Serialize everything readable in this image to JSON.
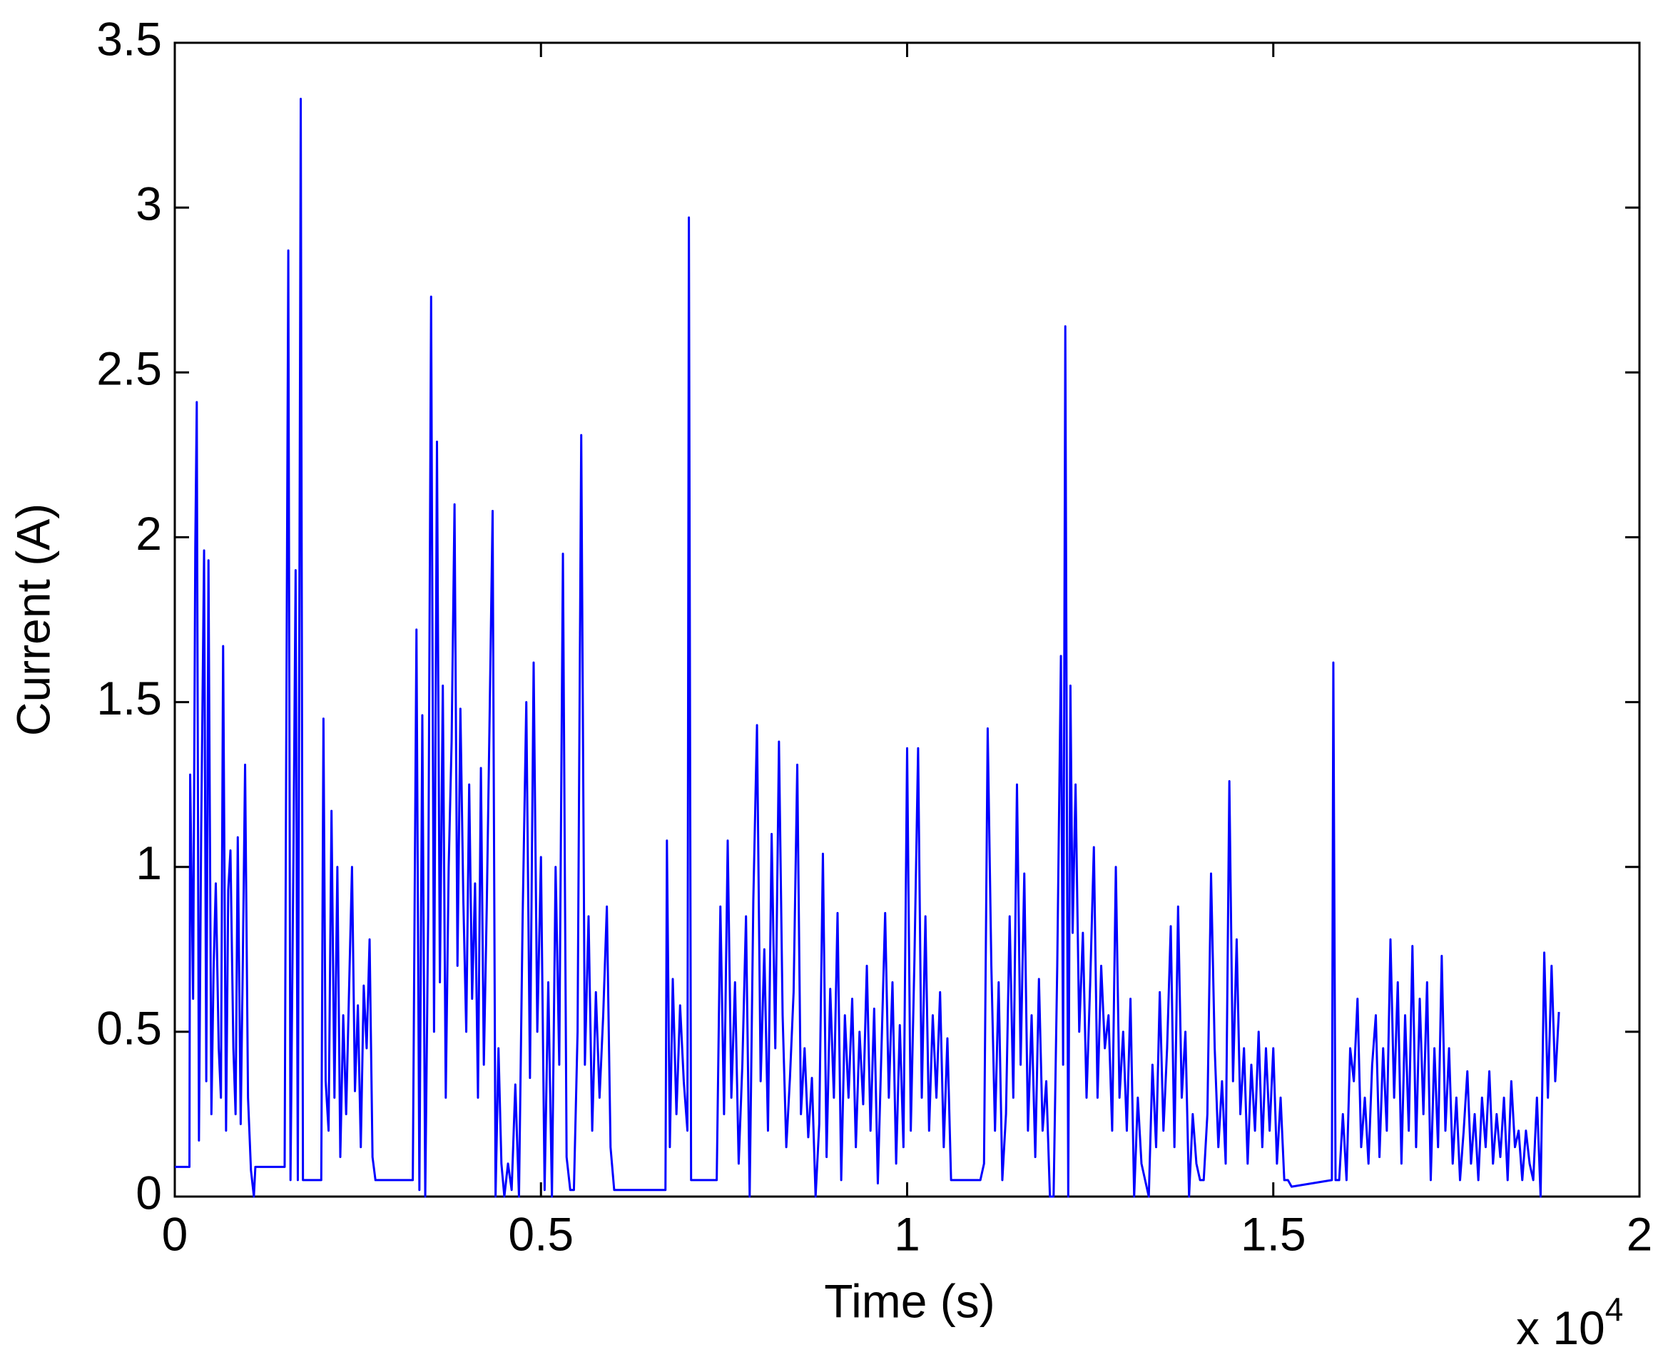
{
  "chart_data": {
    "type": "line",
    "xlabel": "Time (s)",
    "ylabel": "Current (A)",
    "x_multiplier": {
      "base": "x 10",
      "exponent": "4"
    },
    "xlim": [
      0,
      2
    ],
    "xticks": [
      0,
      0.5,
      1,
      1.5,
      2
    ],
    "ylim": [
      0,
      3.5
    ],
    "yticks": [
      0,
      0.5,
      1,
      1.5,
      2,
      2.5,
      3,
      3.5
    ],
    "grid": false,
    "x": [
      0,
      0.02,
      0.021,
      0.025,
      0.028,
      0.03,
      0.033,
      0.036,
      0.04,
      0.043,
      0.046,
      0.05,
      0.053,
      0.056,
      0.06,
      0.063,
      0.066,
      0.07,
      0.073,
      0.076,
      0.08,
      0.083,
      0.086,
      0.09,
      0.093,
      0.096,
      0.1,
      0.104,
      0.108,
      0.11,
      0.15,
      0.152,
      0.155,
      0.158,
      0.162,
      0.165,
      0.168,
      0.172,
      0.175,
      0.178,
      0.2,
      0.203,
      0.206,
      0.21,
      0.214,
      0.218,
      0.222,
      0.226,
      0.23,
      0.234,
      0.238,
      0.242,
      0.246,
      0.25,
      0.254,
      0.258,
      0.262,
      0.266,
      0.27,
      0.274,
      0.28,
      0.325,
      0.33,
      0.334,
      0.338,
      0.342,
      0.346,
      0.35,
      0.354,
      0.358,
      0.362,
      0.366,
      0.37,
      0.374,
      0.378,
      0.382,
      0.386,
      0.39,
      0.394,
      0.398,
      0.402,
      0.406,
      0.41,
      0.414,
      0.418,
      0.422,
      0.426,
      0.43,
      0.434,
      0.438,
      0.442,
      0.446,
      0.45,
      0.455,
      0.46,
      0.465,
      0.47,
      0.475,
      0.48,
      0.485,
      0.49,
      0.495,
      0.5,
      0.505,
      0.51,
      0.515,
      0.52,
      0.525,
      0.53,
      0.535,
      0.54,
      0.545,
      0.55,
      0.555,
      0.56,
      0.565,
      0.57,
      0.575,
      0.58,
      0.585,
      0.59,
      0.595,
      0.6,
      0.67,
      0.672,
      0.676,
      0.68,
      0.685,
      0.69,
      0.695,
      0.7,
      0.702,
      0.705,
      0.74,
      0.745,
      0.75,
      0.755,
      0.76,
      0.765,
      0.77,
      0.775,
      0.78,
      0.785,
      0.79,
      0.795,
      0.8,
      0.805,
      0.81,
      0.815,
      0.82,
      0.825,
      0.83,
      0.835,
      0.84,
      0.845,
      0.85,
      0.855,
      0.86,
      0.865,
      0.87,
      0.875,
      0.88,
      0.885,
      0.89,
      0.895,
      0.9,
      0.905,
      0.91,
      0.915,
      0.92,
      0.925,
      0.93,
      0.935,
      0.94,
      0.945,
      0.95,
      0.955,
      0.96,
      0.965,
      0.97,
      0.975,
      0.98,
      0.985,
      0.99,
      0.995,
      1.0,
      1.005,
      1.01,
      1.015,
      1.02,
      1.025,
      1.03,
      1.035,
      1.04,
      1.045,
      1.05,
      1.055,
      1.06,
      1.07,
      1.1,
      1.105,
      1.11,
      1.115,
      1.12,
      1.125,
      1.13,
      1.135,
      1.14,
      1.145,
      1.15,
      1.155,
      1.16,
      1.165,
      1.17,
      1.175,
      1.18,
      1.185,
      1.19,
      1.195,
      1.2,
      1.205,
      1.21,
      1.213,
      1.216,
      1.22,
      1.223,
      1.226,
      1.23,
      1.235,
      1.24,
      1.245,
      1.25,
      1.255,
      1.26,
      1.265,
      1.27,
      1.275,
      1.28,
      1.285,
      1.29,
      1.295,
      1.3,
      1.305,
      1.31,
      1.315,
      1.32,
      1.325,
      1.33,
      1.335,
      1.34,
      1.345,
      1.35,
      1.355,
      1.36,
      1.365,
      1.37,
      1.375,
      1.38,
      1.385,
      1.39,
      1.395,
      1.4,
      1.405,
      1.41,
      1.415,
      1.42,
      1.425,
      1.43,
      1.435,
      1.44,
      1.445,
      1.45,
      1.455,
      1.46,
      1.465,
      1.47,
      1.475,
      1.48,
      1.485,
      1.49,
      1.495,
      1.5,
      1.505,
      1.51,
      1.515,
      1.52,
      1.525,
      1.58,
      1.582,
      1.585,
      1.59,
      1.595,
      1.6,
      1.605,
      1.61,
      1.615,
      1.62,
      1.625,
      1.63,
      1.635,
      1.64,
      1.645,
      1.65,
      1.655,
      1.66,
      1.665,
      1.67,
      1.675,
      1.68,
      1.685,
      1.69,
      1.695,
      1.7,
      1.705,
      1.71,
      1.715,
      1.72,
      1.725,
      1.73,
      1.735,
      1.74,
      1.745,
      1.75,
      1.755,
      1.76,
      1.765,
      1.77,
      1.775,
      1.78,
      1.785,
      1.79,
      1.795,
      1.8,
      1.805,
      1.81,
      1.815,
      1.82,
      1.825,
      1.83,
      1.835,
      1.84,
      1.845,
      1.85,
      1.855,
      1.86,
      1.865,
      1.87,
      1.875,
      1.88,
      1.885,
      1.89
    ],
    "series": [
      {
        "color": "#0000ff",
        "values": [
          0.09,
          0.09,
          1.28,
          0.6,
          1.97,
          2.41,
          0.17,
          1.1,
          1.96,
          0.35,
          1.93,
          0.25,
          0.69,
          0.95,
          0.45,
          0.3,
          1.67,
          0.2,
          0.93,
          1.05,
          0.45,
          0.25,
          1.09,
          0.22,
          0.73,
          1.31,
          0.3,
          0.08,
          0.0,
          0.09,
          0.09,
          1.28,
          2.87,
          0.05,
          1.03,
          1.9,
          0.05,
          3.33,
          0.05,
          0.05,
          0.05,
          1.45,
          0.35,
          0.2,
          1.17,
          0.3,
          1.0,
          0.12,
          0.55,
          0.25,
          0.63,
          1.0,
          0.32,
          0.58,
          0.15,
          0.64,
          0.45,
          0.78,
          0.12,
          0.05,
          0.05,
          0.05,
          1.72,
          0.02,
          1.46,
          0.0,
          0.85,
          2.73,
          0.5,
          2.29,
          0.65,
          1.55,
          0.3,
          1.0,
          1.38,
          2.1,
          0.7,
          1.48,
          0.9,
          0.5,
          1.25,
          0.6,
          0.95,
          0.3,
          1.3,
          0.4,
          0.88,
          1.47,
          2.08,
          0.0,
          0.45,
          0.1,
          0.0,
          0.1,
          0.02,
          0.34,
          0.0,
          0.85,
          1.5,
          0.36,
          1.62,
          0.5,
          1.03,
          0.02,
          0.65,
          0.0,
          1.0,
          0.4,
          1.95,
          0.12,
          0.02,
          0.02,
          0.5,
          2.31,
          0.4,
          0.85,
          0.2,
          0.62,
          0.3,
          0.55,
          0.88,
          0.15,
          0.02,
          0.02,
          1.08,
          0.15,
          0.66,
          0.25,
          0.58,
          0.35,
          0.2,
          2.97,
          0.05,
          0.05,
          0.88,
          0.25,
          1.08,
          0.3,
          0.65,
          0.1,
          0.4,
          0.85,
          0.0,
          0.9,
          1.43,
          0.35,
          0.75,
          0.2,
          1.1,
          0.45,
          1.38,
          0.55,
          0.15,
          0.36,
          0.62,
          1.31,
          0.25,
          0.45,
          0.18,
          0.36,
          0.0,
          0.22,
          1.04,
          0.12,
          0.63,
          0.3,
          0.86,
          0.05,
          0.55,
          0.3,
          0.6,
          0.15,
          0.5,
          0.28,
          0.7,
          0.2,
          0.57,
          0.04,
          0.45,
          0.86,
          0.3,
          0.65,
          0.1,
          0.52,
          0.15,
          1.36,
          0.2,
          0.72,
          1.36,
          0.3,
          0.85,
          0.2,
          0.55,
          0.3,
          0.62,
          0.15,
          0.48,
          0.05,
          0.05,
          0.05,
          0.1,
          1.42,
          0.7,
          0.2,
          0.65,
          0.05,
          0.25,
          0.85,
          0.3,
          1.25,
          0.4,
          0.98,
          0.2,
          0.55,
          0.12,
          0.66,
          0.2,
          0.35,
          0.0,
          0.0,
          0.7,
          1.64,
          0.4,
          2.64,
          0.0,
          1.55,
          0.8,
          1.25,
          0.5,
          0.8,
          0.3,
          0.65,
          1.06,
          0.3,
          0.7,
          0.45,
          0.55,
          0.2,
          1.0,
          0.3,
          0.5,
          0.2,
          0.6,
          0.0,
          0.3,
          0.1,
          0.05,
          0.0,
          0.4,
          0.15,
          0.62,
          0.2,
          0.45,
          0.82,
          0.15,
          0.88,
          0.3,
          0.5,
          0.0,
          0.25,
          0.1,
          0.05,
          0.05,
          0.25,
          0.98,
          0.45,
          0.15,
          0.35,
          0.1,
          1.26,
          0.35,
          0.78,
          0.25,
          0.45,
          0.1,
          0.4,
          0.2,
          0.5,
          0.15,
          0.45,
          0.2,
          0.45,
          0.1,
          0.3,
          0.05,
          0.05,
          0.03,
          0.05,
          1.62,
          0.05,
          0.05,
          0.25,
          0.05,
          0.45,
          0.35,
          0.6,
          0.15,
          0.3,
          0.1,
          0.4,
          0.55,
          0.12,
          0.45,
          0.2,
          0.78,
          0.3,
          0.65,
          0.1,
          0.55,
          0.2,
          0.76,
          0.15,
          0.6,
          0.25,
          0.65,
          0.05,
          0.45,
          0.15,
          0.73,
          0.2,
          0.45,
          0.1,
          0.3,
          0.05,
          0.2,
          0.38,
          0.1,
          0.25,
          0.05,
          0.3,
          0.15,
          0.38,
          0.1,
          0.25,
          0.12,
          0.3,
          0.05,
          0.35,
          0.15,
          0.2,
          0.05,
          0.2,
          0.1,
          0.05,
          0.3,
          0.0,
          0.74,
          0.3,
          0.7,
          0.35,
          0.56
        ]
      }
    ]
  }
}
